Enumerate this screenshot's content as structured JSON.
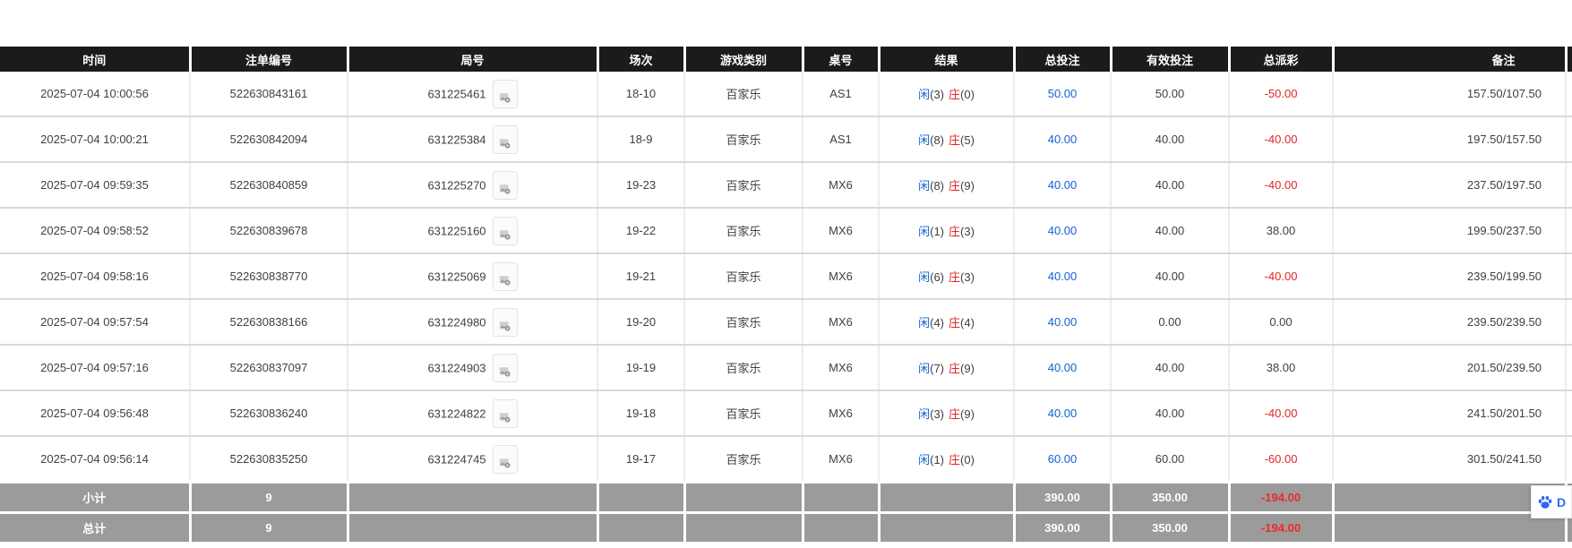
{
  "colors": {
    "header_bg": "#1b1b1b",
    "header_text": "#ffffff",
    "footer_bg": "#9b9b9b",
    "body_text": "#404040",
    "link_blue": "#1063d2",
    "negative_red": "#e02626"
  },
  "table": {
    "columns": [
      {
        "key": "time",
        "label": "时间"
      },
      {
        "key": "bet_id",
        "label": "注单编号"
      },
      {
        "key": "round",
        "label": "局号"
      },
      {
        "key": "session",
        "label": "场次"
      },
      {
        "key": "game_type",
        "label": "游戏类别"
      },
      {
        "key": "table_no",
        "label": "桌号"
      },
      {
        "key": "result",
        "label": "结果"
      },
      {
        "key": "total_bet",
        "label": "总投注"
      },
      {
        "key": "valid_bet",
        "label": "有效投注"
      },
      {
        "key": "payout",
        "label": "总派彩"
      },
      {
        "key": "remark",
        "label": "备注"
      }
    ],
    "result_labels": {
      "player": "闲",
      "banker": "庄"
    },
    "rows": [
      {
        "time": "2025-07-04 10:00:56",
        "bet_id": "522630843161",
        "round": "631225461",
        "session": "18-10",
        "game_type": "百家乐",
        "table_no": "AS1",
        "result": {
          "player": "3",
          "banker": "0"
        },
        "total_bet": "50.00",
        "valid_bet": "50.00",
        "payout": "-50.00",
        "remark": "157.50/107.50"
      },
      {
        "time": "2025-07-04 10:00:21",
        "bet_id": "522630842094",
        "round": "631225384",
        "session": "18-9",
        "game_type": "百家乐",
        "table_no": "AS1",
        "result": {
          "player": "8",
          "banker": "5"
        },
        "total_bet": "40.00",
        "valid_bet": "40.00",
        "payout": "-40.00",
        "remark": "197.50/157.50"
      },
      {
        "time": "2025-07-04 09:59:35",
        "bet_id": "522630840859",
        "round": "631225270",
        "session": "19-23",
        "game_type": "百家乐",
        "table_no": "MX6",
        "result": {
          "player": "8",
          "banker": "9"
        },
        "total_bet": "40.00",
        "valid_bet": "40.00",
        "payout": "-40.00",
        "remark": "237.50/197.50"
      },
      {
        "time": "2025-07-04 09:58:52",
        "bet_id": "522630839678",
        "round": "631225160",
        "session": "19-22",
        "game_type": "百家乐",
        "table_no": "MX6",
        "result": {
          "player": "1",
          "banker": "3"
        },
        "total_bet": "40.00",
        "valid_bet": "40.00",
        "payout": "38.00",
        "remark": "199.50/237.50"
      },
      {
        "time": "2025-07-04 09:58:16",
        "bet_id": "522630838770",
        "round": "631225069",
        "session": "19-21",
        "game_type": "百家乐",
        "table_no": "MX6",
        "result": {
          "player": "6",
          "banker": "3"
        },
        "total_bet": "40.00",
        "valid_bet": "40.00",
        "payout": "-40.00",
        "remark": "239.50/199.50"
      },
      {
        "time": "2025-07-04 09:57:54",
        "bet_id": "522630838166",
        "round": "631224980",
        "session": "19-20",
        "game_type": "百家乐",
        "table_no": "MX6",
        "result": {
          "player": "4",
          "banker": "4"
        },
        "total_bet": "40.00",
        "valid_bet": "0.00",
        "payout": "0.00",
        "remark": "239.50/239.50"
      },
      {
        "time": "2025-07-04 09:57:16",
        "bet_id": "522630837097",
        "round": "631224903",
        "session": "19-19",
        "game_type": "百家乐",
        "table_no": "MX6",
        "result": {
          "player": "7",
          "banker": "9"
        },
        "total_bet": "40.00",
        "valid_bet": "40.00",
        "payout": "38.00",
        "remark": "201.50/239.50"
      },
      {
        "time": "2025-07-04 09:56:48",
        "bet_id": "522630836240",
        "round": "631224822",
        "session": "19-18",
        "game_type": "百家乐",
        "table_no": "MX6",
        "result": {
          "player": "3",
          "banker": "9"
        },
        "total_bet": "40.00",
        "valid_bet": "40.00",
        "payout": "-40.00",
        "remark": "241.50/201.50"
      },
      {
        "time": "2025-07-04 09:56:14",
        "bet_id": "522630835250",
        "round": "631224745",
        "session": "19-17",
        "game_type": "百家乐",
        "table_no": "MX6",
        "result": {
          "player": "1",
          "banker": "0"
        },
        "total_bet": "60.00",
        "valid_bet": "60.00",
        "payout": "-60.00",
        "remark": "301.50/241.50"
      }
    ],
    "footer_rows": [
      {
        "label": "小计",
        "count": "9",
        "total_bet": "390.00",
        "valid_bet": "350.00",
        "payout": "-194.00"
      },
      {
        "label": "总计",
        "count": "9",
        "total_bet": "390.00",
        "valid_bet": "350.00",
        "payout": "-194.00"
      }
    ]
  },
  "icons": {
    "round_media": "replay-icon",
    "widget": "paw-icon"
  },
  "widget": {
    "text": "D"
  }
}
